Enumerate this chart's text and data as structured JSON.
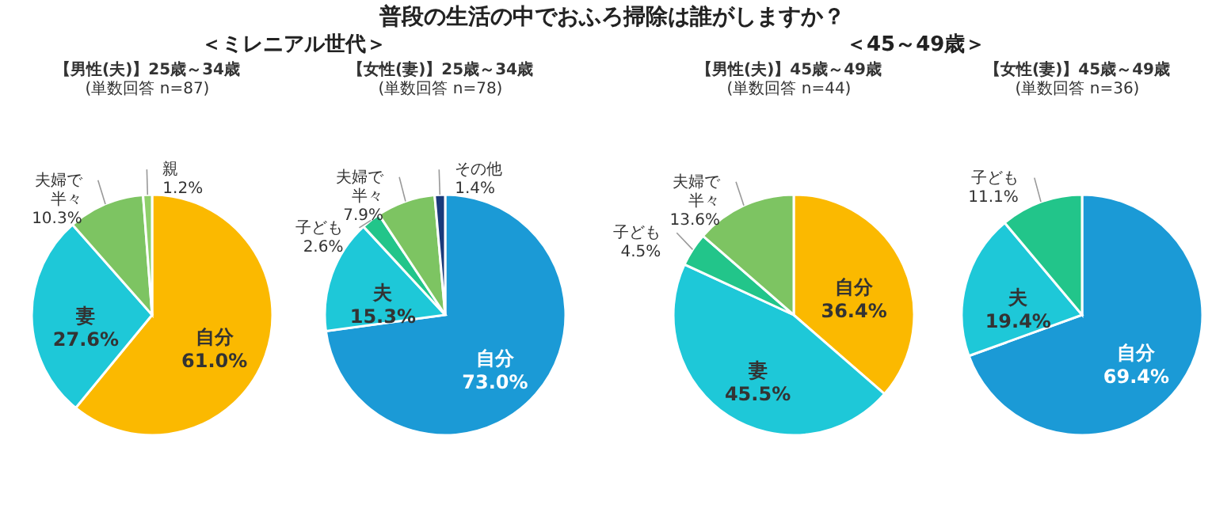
{
  "chart_data": [
    {
      "type": "pie",
      "title": "【男性(夫)】25歳～34歳",
      "subtitle": "(単数回答 n=87)",
      "annotations": [
        "普段の生活の中でおふろ掃除は誰がしますか？",
        "＜ミレニアル世代＞"
      ],
      "categories": [
        "自分",
        "妻",
        "夫婦で半々",
        "親"
      ],
      "values": [
        61.0,
        27.6,
        10.3,
        1.2
      ],
      "value_labels": [
        "61.0%",
        "27.6%",
        "10.3%",
        "1.2%"
      ],
      "colors": [
        "#fbb900",
        "#1ec8d8",
        "#7dc462",
        "#8fcf6a"
      ]
    },
    {
      "type": "pie",
      "title": "【女性(妻)】25歳～34歳",
      "subtitle": "(単数回答 n=78)",
      "categories": [
        "自分",
        "夫",
        "子ども",
        "夫婦で半々",
        "その他"
      ],
      "values": [
        73.0,
        15.3,
        2.6,
        7.9,
        1.4
      ],
      "value_labels": [
        "73.0%",
        "15.3%",
        "2.6%",
        "7.9%",
        "1.4%"
      ],
      "colors": [
        "#1b9ad6",
        "#1ec8d8",
        "#22c58a",
        "#7dc462",
        "#1a3a7a"
      ]
    },
    {
      "type": "pie",
      "title": "【男性(夫)】45歳～49歳",
      "subtitle": "(単数回答 n=44)",
      "annotations": [
        "＜45～49歳＞"
      ],
      "categories": [
        "自分",
        "妻",
        "子ども",
        "夫婦で半々"
      ],
      "values": [
        36.4,
        45.5,
        4.5,
        13.6
      ],
      "value_labels": [
        "36.4%",
        "45.5%",
        "4.5%",
        "13.6%"
      ],
      "colors": [
        "#fbb900",
        "#1ec8d8",
        "#22c58a",
        "#7dc462"
      ]
    },
    {
      "type": "pie",
      "title": "【女性(妻)】45歳～49歳",
      "subtitle": "(単数回答 n=36)",
      "categories": [
        "自分",
        "夫",
        "子ども"
      ],
      "values": [
        69.4,
        19.4,
        11.1
      ],
      "value_labels": [
        "69.4%",
        "19.4%",
        "11.1%"
      ],
      "colors": [
        "#1b9ad6",
        "#1ec8d8",
        "#22c58a"
      ]
    }
  ]
}
